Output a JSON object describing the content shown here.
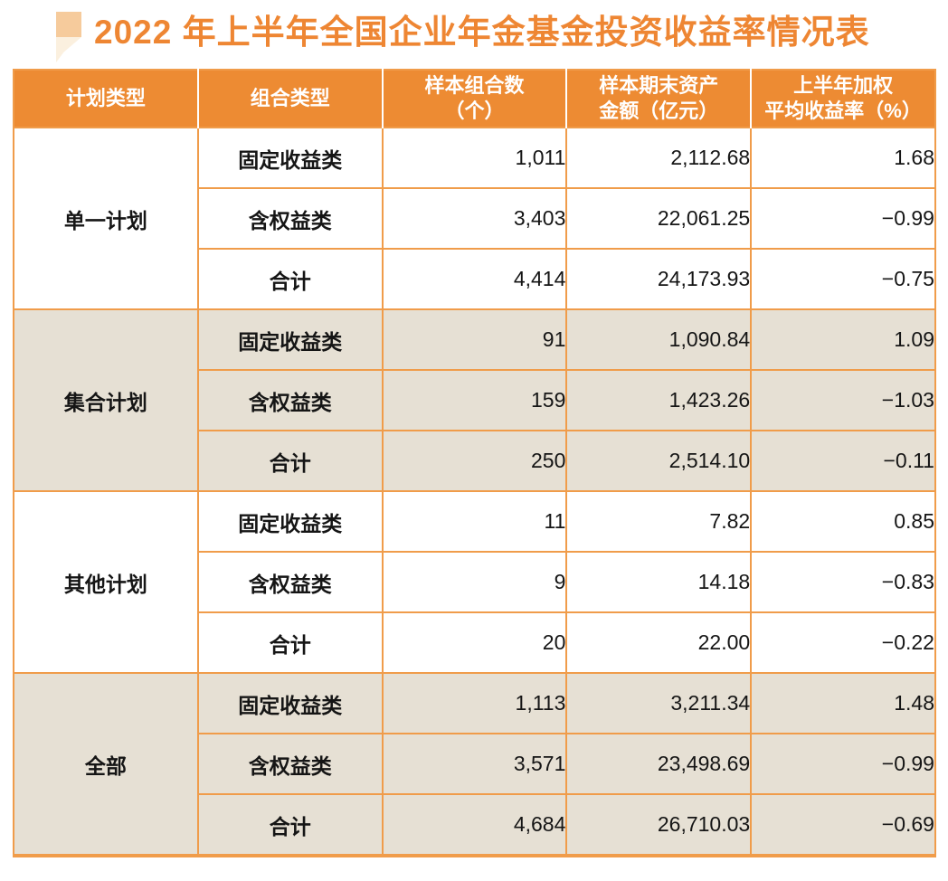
{
  "title": {
    "text": "2022 年上半年全国企业年金基金投资收益率情况表"
  },
  "colors": {
    "title_text": "#ee8633",
    "header_bg": "#ed8b33",
    "header_text": "#ffffff",
    "grid_border": "#f09c4a",
    "shaded_row_bg": "#e6e0d4",
    "bullet_top": "#f6cb9c",
    "bullet_tail": "#fbf0df",
    "body_text": "#151515"
  },
  "table": {
    "headers": [
      {
        "id": "plan-type",
        "lines": [
          "计划类型"
        ]
      },
      {
        "id": "portfolio-type",
        "lines": [
          "组合类型"
        ]
      },
      {
        "id": "sample-count",
        "lines": [
          "样本组合数",
          "（个）"
        ]
      },
      {
        "id": "period-end-assets",
        "lines": [
          "样本期末资产",
          "金额（亿元）"
        ]
      },
      {
        "id": "weighted-return",
        "lines": [
          "上半年加权",
          "平均收益率（%）"
        ]
      }
    ],
    "groups": [
      {
        "plan": "单一计划",
        "shaded": false,
        "rows": [
          {
            "type": "固定收益类",
            "count": "1,011",
            "assets": "2,112.68",
            "rate": "1.68"
          },
          {
            "type": "含权益类",
            "count": "3,403",
            "assets": "22,061.25",
            "rate": "−0.99"
          },
          {
            "type": "合计",
            "count": "4,414",
            "assets": "24,173.93",
            "rate": "−0.75"
          }
        ]
      },
      {
        "plan": "集合计划",
        "shaded": true,
        "rows": [
          {
            "type": "固定收益类",
            "count": "91",
            "assets": "1,090.84",
            "rate": "1.09"
          },
          {
            "type": "含权益类",
            "count": "159",
            "assets": "1,423.26",
            "rate": "−1.03"
          },
          {
            "type": "合计",
            "count": "250",
            "assets": "2,514.10",
            "rate": "−0.11"
          }
        ]
      },
      {
        "plan": "其他计划",
        "shaded": false,
        "rows": [
          {
            "type": "固定收益类",
            "count": "11",
            "assets": "7.82",
            "rate": "0.85"
          },
          {
            "type": "含权益类",
            "count": "9",
            "assets": "14.18",
            "rate": "−0.83"
          },
          {
            "type": "合计",
            "count": "20",
            "assets": "22.00",
            "rate": "−0.22"
          }
        ]
      },
      {
        "plan": "全部",
        "shaded": true,
        "rows": [
          {
            "type": "固定收益类",
            "count": "1,113",
            "assets": "3,211.34",
            "rate": "1.48"
          },
          {
            "type": "含权益类",
            "count": "3,571",
            "assets": "23,498.69",
            "rate": "−0.99"
          },
          {
            "type": "合计",
            "count": "4,684",
            "assets": "26,710.03",
            "rate": "−0.69"
          }
        ]
      }
    ]
  }
}
